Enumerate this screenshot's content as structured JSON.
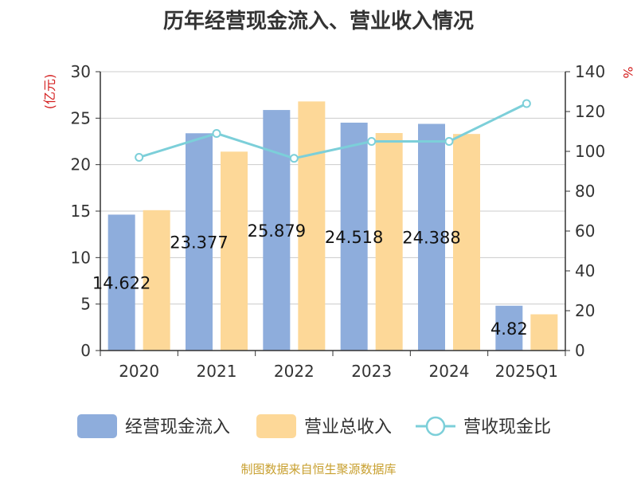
{
  "chart_data": {
    "type": "bar",
    "title": "历年经营现金流入、营业收入情况",
    "categories": [
      "2020",
      "2021",
      "2022",
      "2023",
      "2024",
      "2025Q1"
    ],
    "series": [
      {
        "name": "经营现金流入",
        "axis": "left",
        "color": "#8eaddc",
        "values": [
          14.622,
          23.377,
          25.879,
          24.518,
          24.388,
          4.82
        ],
        "labels": [
          "14.622",
          "23.377",
          "25.879",
          "24.518",
          "24.388",
          "4.82"
        ]
      },
      {
        "name": "营业总收入",
        "axis": "left",
        "color": "#fdd898",
        "values": [
          15.1,
          21.4,
          26.8,
          23.4,
          23.3,
          3.9
        ]
      },
      {
        "name": "营收现金比",
        "axis": "right",
        "type": "line",
        "color": "#7ccfd9",
        "values": [
          97,
          109,
          96.5,
          105,
          105,
          124
        ]
      }
    ],
    "ylabel_left": "(亿元)",
    "ylabel_right": "%",
    "ylim_left": [
      0,
      30
    ],
    "ylim_right": [
      0,
      140
    ],
    "yticks_left": [
      0,
      5,
      10,
      15,
      20,
      25,
      30
    ],
    "yticks_right": [
      0,
      20,
      40,
      60,
      80,
      100,
      120,
      140
    ],
    "grid": true,
    "legend": "bottom"
  },
  "source_note": "制图数据来自恒生聚源数据库"
}
